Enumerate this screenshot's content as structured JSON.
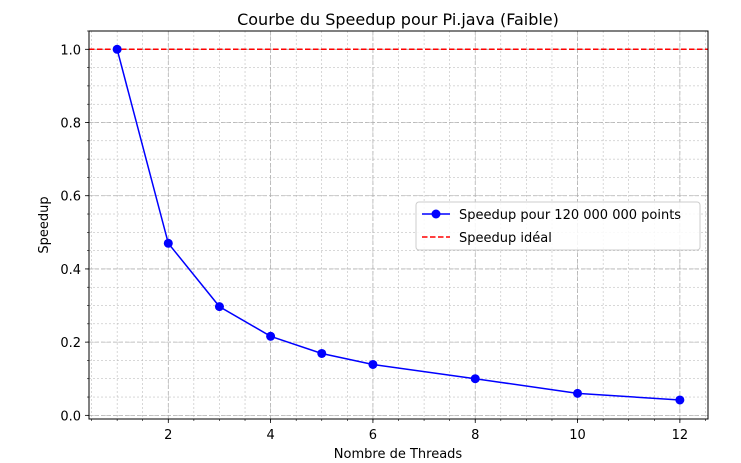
{
  "chart_data": {
    "type": "line",
    "title": "Courbe du Speedup pour Pi.java (Faible)",
    "xlabel": "Nombre de Threads",
    "ylabel": "Speedup",
    "xlim": [
      0.45,
      12.55
    ],
    "ylim": [
      -0.01,
      1.05
    ],
    "x_ticks": [
      2,
      4,
      6,
      8,
      10,
      12
    ],
    "y_ticks": [
      0.0,
      0.2,
      0.4,
      0.6,
      0.8,
      1.0
    ],
    "x_minor_step": 0.5,
    "y_minor_step": 0.05,
    "grid": true,
    "legend_position": "center-right",
    "series": [
      {
        "name": "Speedup pour 120 000 000 points",
        "color": "#0000ff",
        "style": "solid",
        "marker": "circle",
        "x": [
          1,
          2,
          3,
          4,
          5,
          6,
          8,
          10,
          12
        ],
        "values": [
          1.0,
          0.47,
          0.297,
          0.216,
          0.169,
          0.139,
          0.1,
          0.06,
          0.042
        ]
      }
    ],
    "reference_lines": [
      {
        "name": "Speedup idéal",
        "y": 1.0,
        "color": "#ff0000",
        "style": "dashed"
      }
    ]
  }
}
